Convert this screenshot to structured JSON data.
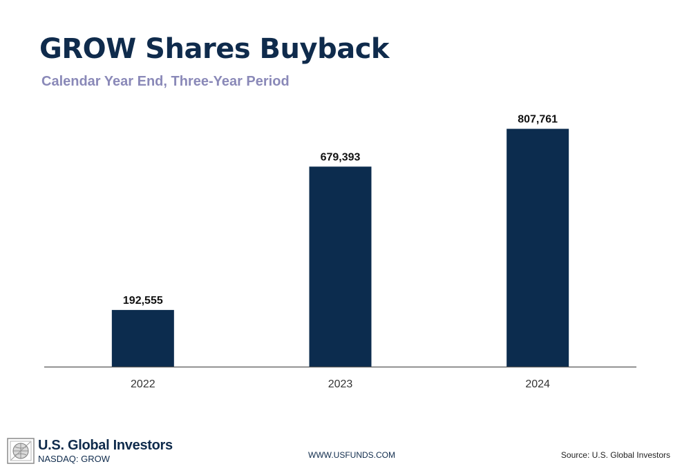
{
  "chart_data": {
    "type": "bar",
    "title": "GROW Shares Buyback",
    "subtitle": "Calendar Year End, Three-Year Period",
    "categories": [
      "2022",
      "2023",
      "2024"
    ],
    "values": [
      192555,
      679393,
      807761
    ],
    "value_labels": [
      "192,555",
      "679,393",
      "807,761"
    ],
    "ylim": [
      0,
      870000
    ],
    "bar_color": "#0c2c4e",
    "grid": false,
    "legend": false
  },
  "footer": {
    "brand_name": "U.S. Global Investors",
    "brand_ticker": "NASDAQ: GROW",
    "website": "WWW.USFUNDS.COM",
    "source": "Source: U.S. Global Investors",
    "logo_icon": "globe-logo-icon"
  },
  "colors": {
    "title": "#0f2b4c",
    "subtitle": "#8a89b8",
    "axis": "#555555"
  }
}
